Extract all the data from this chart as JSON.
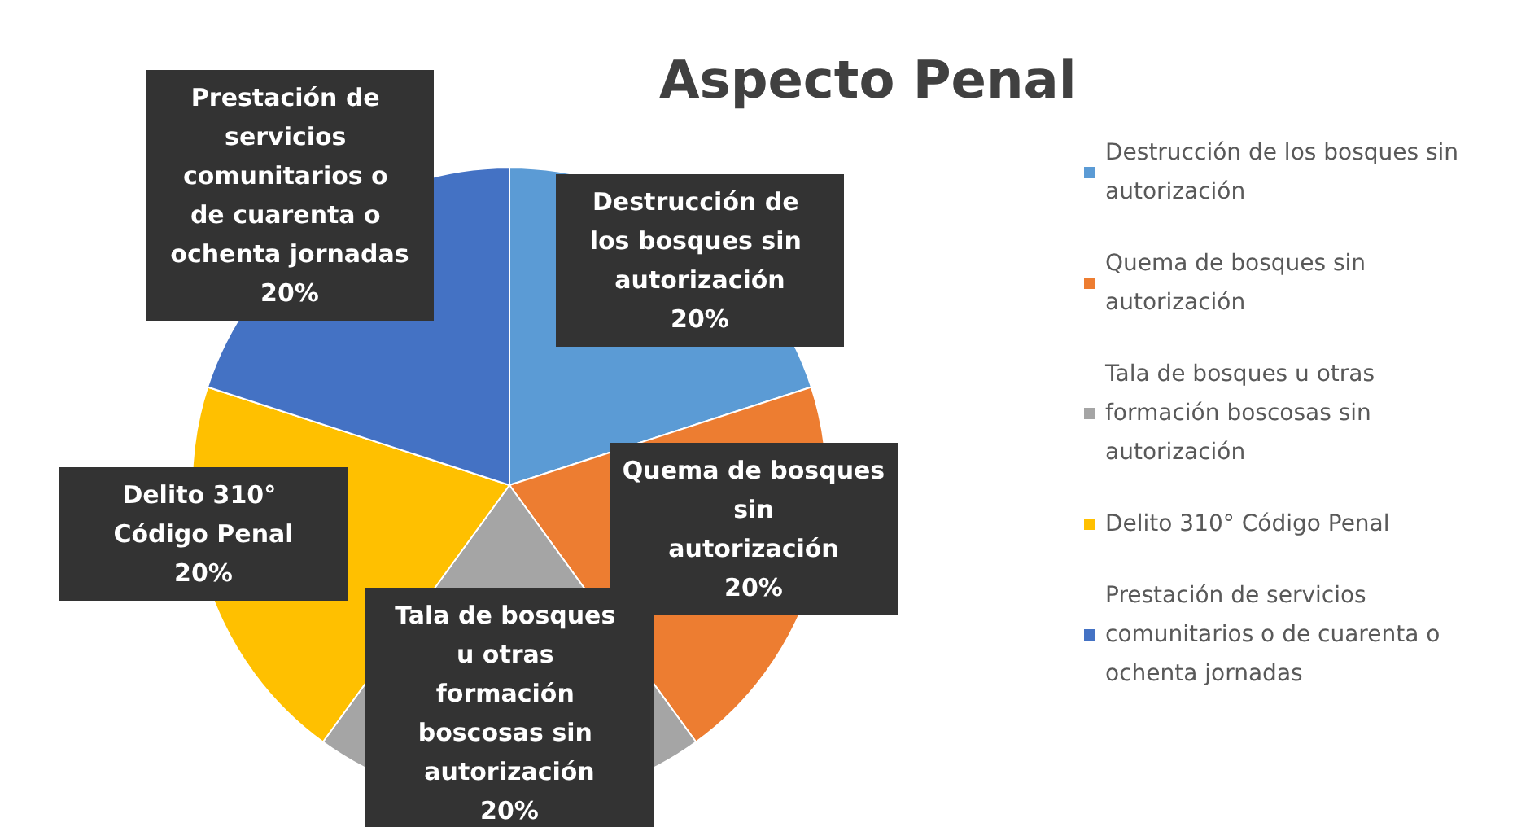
{
  "chart_data": {
    "type": "pie",
    "title": "Aspecto Penal",
    "categories": [
      "Destrucción de los bosques sin autorización",
      "Quema de bosques sin autorización",
      "Tala de bosques u otras formación boscosas sin autorización",
      "Delito 310° Código Penal",
      "Prestación de servicios comunitarios o de cuarenta o ochenta jornadas"
    ],
    "values": [
      20,
      20,
      20,
      20,
      20
    ],
    "colors": [
      "#5b9bd5",
      "#ed7d31",
      "#a5a5a5",
      "#ffc000",
      "#4472c4"
    ],
    "value_labels": [
      "20%",
      "20%",
      "20%",
      "20%",
      "20%"
    ],
    "legend": "right"
  }
}
